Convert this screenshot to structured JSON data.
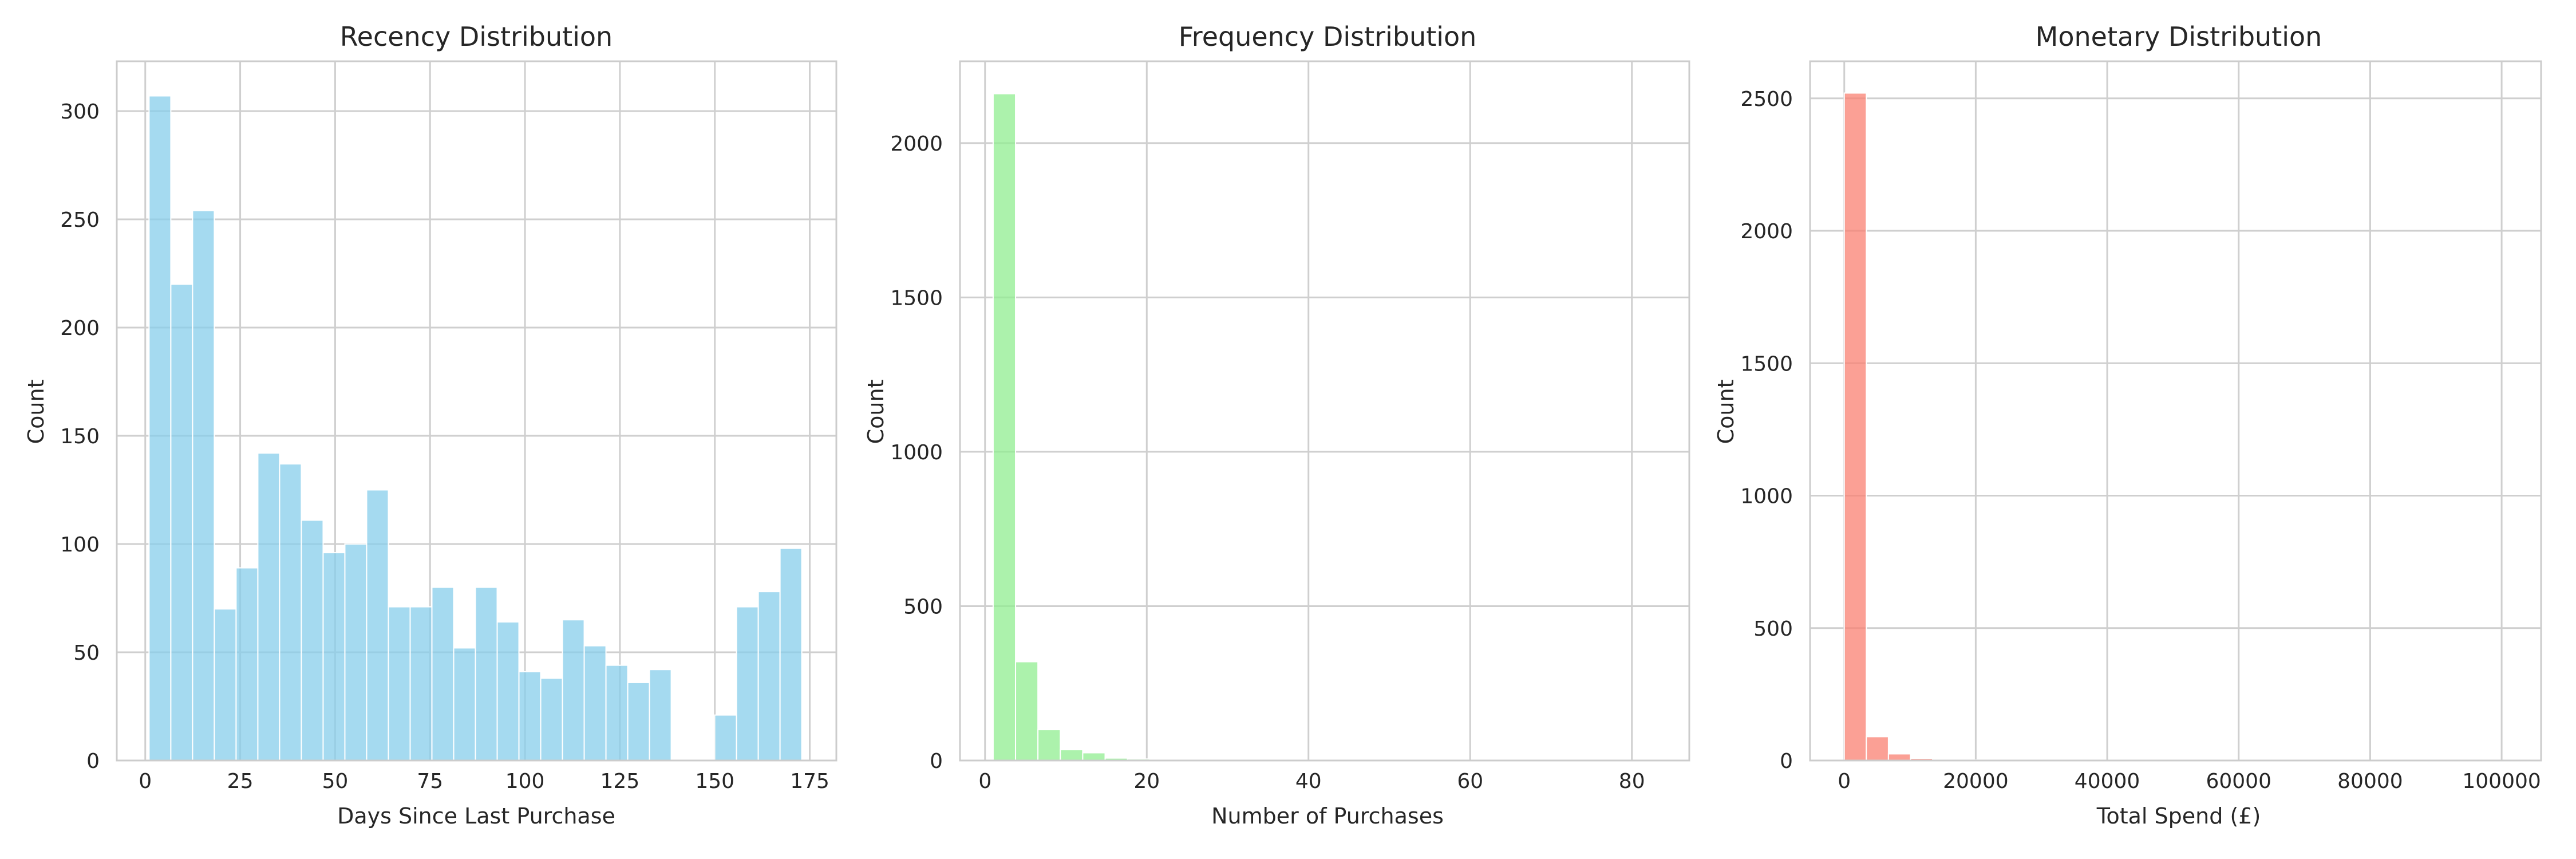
{
  "colors": {
    "recency": "#87CEEB",
    "frequency": "#90EE90",
    "monetary": "#FA8072"
  },
  "chart_data": [
    {
      "type": "bar",
      "title": "Recency Distribution",
      "xlabel": "Days Since Last Purchase",
      "ylabel": "Count",
      "xlim": [
        -7.5,
        182
      ],
      "ylim": [
        0,
        323
      ],
      "xticks": [
        0,
        25,
        50,
        75,
        100,
        125,
        150,
        175
      ],
      "yticks": [
        0,
        50,
        100,
        150,
        200,
        250,
        300
      ],
      "grid": true,
      "color_key": "recency",
      "bin_width": 5.73,
      "bin_start": 1,
      "values": [
        307,
        220,
        254,
        70,
        89,
        142,
        137,
        111,
        96,
        100,
        125,
        71,
        71,
        80,
        52,
        80,
        64,
        41,
        38,
        65,
        53,
        44,
        36,
        42,
        0,
        0,
        21,
        71,
        78,
        98
      ]
    },
    {
      "type": "bar",
      "title": "Frequency Distribution",
      "xlabel": "Number of Purchases",
      "ylabel": "Count",
      "xlim": [
        -3.1,
        87.1
      ],
      "ylim": [
        0,
        2265
      ],
      "xticks": [
        0,
        20,
        40,
        60,
        80
      ],
      "yticks": [
        0,
        500,
        1000,
        1500,
        2000
      ],
      "grid": true,
      "color_key": "frequency",
      "bin_width": 2.77,
      "bin_start": 1,
      "values": [
        2160,
        320,
        100,
        35,
        25,
        8,
        5,
        3,
        2,
        2,
        1,
        1,
        1,
        1,
        1,
        0,
        1,
        0,
        0,
        0,
        0,
        0,
        0,
        0,
        0,
        0,
        0,
        0,
        0,
        1
      ]
    },
    {
      "type": "bar",
      "title": "Monetary Distribution",
      "xlabel": "Total Spend (£)",
      "ylabel": "Count",
      "xlim": [
        -5200,
        106000
      ],
      "ylim": [
        0,
        2640
      ],
      "xticks": [
        0,
        20000,
        40000,
        60000,
        80000,
        100000
      ],
      "yticks": [
        0,
        500,
        1000,
        1500,
        2000,
        2500
      ],
      "grid": true,
      "color_key": "monetary",
      "bin_width": 3360,
      "bin_start": 0,
      "values": [
        2520,
        90,
        25,
        8,
        4,
        2,
        1,
        1,
        1,
        0,
        0,
        0,
        0,
        0,
        0,
        0,
        0,
        0,
        0,
        0,
        0,
        0,
        0,
        0,
        0,
        0,
        0,
        0,
        0,
        1
      ]
    }
  ]
}
